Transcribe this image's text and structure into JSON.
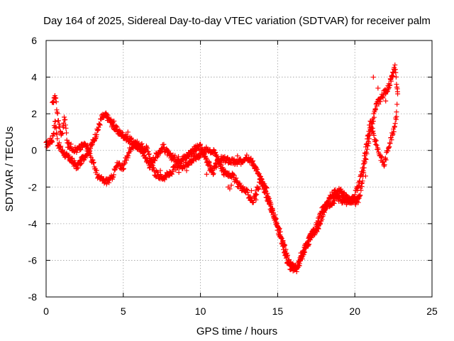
{
  "chart_data": {
    "type": "scatter",
    "title": "Day 164 of 2025, Sidereal Day-to-day VTEC variation (SDTVAR) for receiver palm",
    "xlabel": "GPS time / hours",
    "ylabel": "SDTVAR / TECUs",
    "xlim": [
      0,
      25
    ],
    "ylim": [
      -8,
      6
    ],
    "xticks": [
      "0",
      "5",
      "10",
      "15",
      "20",
      "25"
    ],
    "yticks": [
      "-8",
      "-6",
      "-4",
      "-2",
      "0",
      "2",
      "4",
      "6"
    ],
    "grid": true,
    "marker": "+",
    "series": [
      {
        "name": "palm",
        "color": "#ff0000",
        "trace_knots": [
          [
            0.0,
            0.3
          ],
          [
            0.4,
            0.6
          ],
          [
            0.6,
            1.6
          ],
          [
            0.75,
            0.4
          ],
          [
            1.0,
            0.0
          ],
          [
            1.3,
            -0.3
          ],
          [
            1.6,
            -0.5
          ],
          [
            2.0,
            -0.9
          ],
          [
            2.5,
            -0.3
          ],
          [
            2.9,
            0.2
          ],
          [
            3.3,
            1.0
          ],
          [
            3.6,
            1.8
          ],
          [
            3.9,
            1.9
          ],
          [
            4.3,
            1.4
          ],
          [
            4.7,
            1.0
          ],
          [
            5.2,
            0.7
          ],
          [
            5.7,
            0.4
          ],
          [
            6.2,
            0.0
          ],
          [
            6.7,
            -0.8
          ],
          [
            7.2,
            -0.2
          ],
          [
            7.6,
            0.2
          ],
          [
            8.0,
            -0.3
          ],
          [
            8.5,
            -0.5
          ],
          [
            9.0,
            -0.4
          ],
          [
            9.5,
            0.0
          ],
          [
            10.0,
            0.2
          ],
          [
            10.4,
            -0.5
          ],
          [
            10.8,
            -1.2
          ],
          [
            11.2,
            -0.5
          ],
          [
            11.6,
            -0.5
          ],
          [
            12.0,
            -0.6
          ],
          [
            12.5,
            -0.7
          ],
          [
            13.0,
            -0.3
          ],
          [
            13.5,
            -0.8
          ],
          [
            14.0,
            -1.8
          ],
          [
            14.5,
            -3.0
          ],
          [
            15.0,
            -4.0
          ],
          [
            15.3,
            -5.0
          ],
          [
            15.6,
            -6.0
          ],
          [
            15.9,
            -6.5
          ],
          [
            16.3,
            -6.3
          ],
          [
            16.8,
            -5.2
          ],
          [
            17.2,
            -4.6
          ],
          [
            17.6,
            -4.3
          ],
          [
            18.0,
            -3.3
          ],
          [
            18.5,
            -2.4
          ],
          [
            19.0,
            -2.2
          ],
          [
            19.5,
            -2.6
          ],
          [
            20.0,
            -2.9
          ],
          [
            20.3,
            -2.6
          ],
          [
            20.6,
            -1.0
          ],
          [
            21.0,
            1.0
          ],
          [
            21.4,
            2.5
          ],
          [
            21.8,
            3.0
          ],
          [
            22.2,
            3.5
          ],
          [
            22.6,
            4.5
          ],
          [
            22.8,
            3.0
          ]
        ],
        "branch_knots": [
          [
            0.4,
            2.5
          ],
          [
            0.6,
            3.0
          ],
          [
            0.8,
            1.5
          ],
          [
            1.0,
            0.8
          ],
          [
            1.2,
            1.8
          ],
          [
            1.4,
            0.3
          ],
          [
            2.0,
            0.0
          ],
          [
            2.6,
            0.4
          ],
          [
            3.0,
            -0.6
          ],
          [
            3.4,
            -1.5
          ],
          [
            3.8,
            -1.7
          ],
          [
            4.2,
            -1.6
          ],
          [
            4.6,
            -0.8
          ],
          [
            5.0,
            -0.9
          ],
          [
            5.5,
            0.2
          ],
          [
            6.0,
            0.3
          ],
          [
            6.5,
            0.1
          ],
          [
            7.0,
            -1.2
          ],
          [
            7.5,
            -1.5
          ],
          [
            8.0,
            -1.3
          ],
          [
            8.4,
            -0.9
          ],
          [
            9.0,
            -0.8
          ],
          [
            9.5,
            -0.5
          ],
          [
            10.5,
            0.1
          ],
          [
            11.0,
            -0.2
          ],
          [
            11.5,
            -1.2
          ],
          [
            12.0,
            -1.3
          ],
          [
            12.4,
            -1.8
          ],
          [
            13.0,
            -2.3
          ],
          [
            13.4,
            -2.8
          ],
          [
            13.9,
            -1.6
          ],
          [
            14.3,
            -2.2
          ],
          [
            14.8,
            -3.8
          ],
          [
            15.2,
            -4.8
          ],
          [
            15.5,
            -5.4
          ],
          [
            15.8,
            -6.2
          ],
          [
            16.2,
            -6.5
          ],
          [
            16.6,
            -5.8
          ],
          [
            17.0,
            -5.0
          ],
          [
            17.4,
            -4.4
          ],
          [
            17.9,
            -3.2
          ],
          [
            18.4,
            -2.9
          ],
          [
            18.9,
            -2.6
          ],
          [
            19.4,
            -2.8
          ],
          [
            19.8,
            -2.7
          ],
          [
            20.2,
            -2.0
          ],
          [
            20.5,
            -1.0
          ],
          [
            20.8,
            0.5
          ],
          [
            21.0,
            1.5
          ],
          [
            21.3,
            0.6
          ],
          [
            21.6,
            -0.2
          ],
          [
            21.9,
            -0.8
          ],
          [
            22.2,
            0.3
          ],
          [
            22.5,
            1.0
          ],
          [
            22.7,
            2.0
          ],
          [
            22.8,
            3.6
          ]
        ],
        "extra_points": [
          [
            4.2,
            1.7
          ],
          [
            4.3,
            1.5
          ],
          [
            4.4,
            1.6
          ],
          [
            5.3,
            1.0
          ],
          [
            5.9,
            0.5
          ],
          [
            7.4,
            -1.1
          ],
          [
            8.6,
            -1.2
          ],
          [
            9.1,
            -1.1
          ],
          [
            11.5,
            -1.3
          ],
          [
            11.8,
            -2.0
          ],
          [
            11.9,
            -2.1
          ],
          [
            12.0,
            -1.9
          ],
          [
            12.4,
            -0.3
          ],
          [
            12.5,
            -0.5
          ],
          [
            12.7,
            -0.6
          ],
          [
            13.3,
            -2.2
          ],
          [
            13.6,
            -2.7
          ],
          [
            10.4,
            -1.3
          ],
          [
            10.6,
            -1.1
          ],
          [
            16.1,
            -6.4
          ],
          [
            16.5,
            -5.6
          ],
          [
            17.0,
            -4.8
          ],
          [
            17.3,
            -4.3
          ],
          [
            20.1,
            -2.8
          ],
          [
            20.3,
            -1.9
          ],
          [
            20.7,
            -1.4
          ],
          [
            21.2,
            4.0
          ],
          [
            21.5,
            3.4
          ],
          [
            22.0,
            2.7
          ],
          [
            22.7,
            2.1
          ]
        ]
      }
    ]
  }
}
